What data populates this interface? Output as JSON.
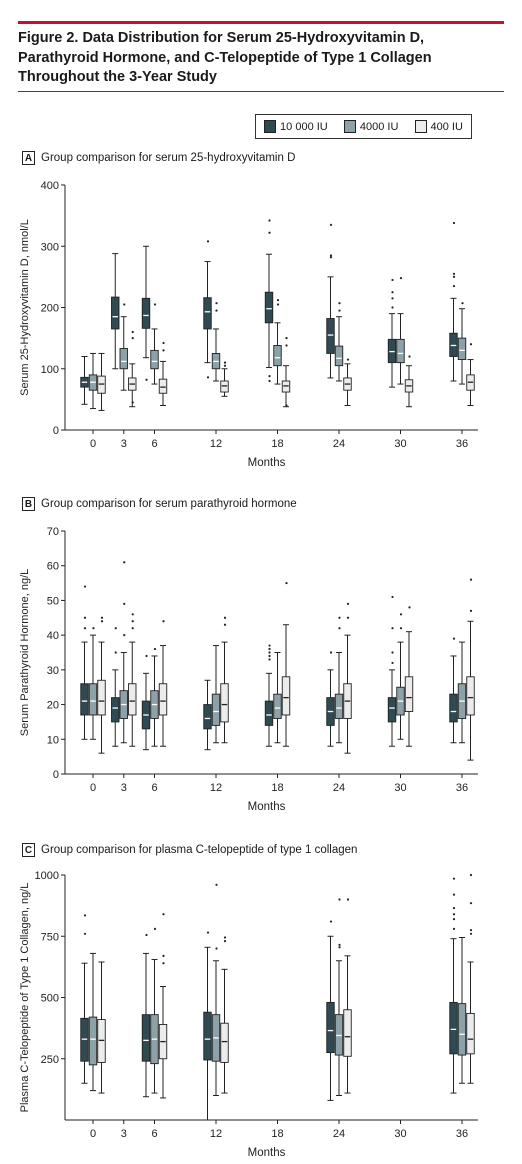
{
  "figure": {
    "title": "Figure 2. Data Distribution for Serum 25-Hydroxyvitamin D, Parathyroid Hormone, and C-Telopeptide of Type 1 Collagen Throughout the 3-Year Study"
  },
  "legend": [
    {
      "label": "10 000 IU",
      "color": "#2f4a52"
    },
    {
      "label": "4000 IU",
      "color": "#8da2a8"
    },
    {
      "label": "400 IU",
      "color": "#ececec"
    }
  ],
  "chart_data": [
    {
      "type": "box",
      "letter": "A",
      "title": "Group comparison for serum 25-hydroxyvitamin D",
      "xlabel": "Months",
      "ylabel": "Serum 25-Hydroxyvitamin D, nmol/L",
      "ylim": [
        0,
        400
      ],
      "yticks": [
        "0",
        "100",
        "200",
        "300",
        "400"
      ],
      "categories": [
        "0",
        "3",
        "6",
        "12",
        "18",
        "24",
        "30",
        "36"
      ],
      "series": [
        {
          "name": "10 000 IU",
          "boxes": [
            {
              "x": 0,
              "whislo": 42,
              "q1": 70,
              "med": 78,
              "q3": 86,
              "whishi": 120,
              "fliers": []
            },
            {
              "x": 3,
              "whislo": 100,
              "q1": 165,
              "med": 185,
              "q3": 217,
              "whishi": 288,
              "fliers": []
            },
            {
              "x": 6,
              "whislo": 118,
              "q1": 166,
              "med": 187,
              "q3": 215,
              "whishi": 300,
              "fliers": [
                82
              ]
            },
            {
              "x": 12,
              "whislo": 110,
              "q1": 165,
              "med": 193,
              "q3": 216,
              "whishi": 275,
              "fliers": [
                86,
                308
              ]
            },
            {
              "x": 18,
              "whislo": 102,
              "q1": 175,
              "med": 198,
              "q3": 225,
              "whishi": 287,
              "fliers": [
                80,
                88,
                322,
                342
              ]
            },
            {
              "x": 24,
              "whislo": 85,
              "q1": 125,
              "med": 155,
              "q3": 182,
              "whishi": 250,
              "fliers": [
                282,
                285,
                335
              ]
            },
            {
              "x": 30,
              "whislo": 70,
              "q1": 110,
              "med": 128,
              "q3": 148,
              "whishi": 190,
              "fliers": [
                200,
                215,
                225,
                245
              ]
            },
            {
              "x": 36,
              "whislo": 80,
              "q1": 120,
              "med": 138,
              "q3": 158,
              "whishi": 215,
              "fliers": [
                235,
                250,
                255,
                338
              ]
            }
          ]
        },
        {
          "name": "4000 IU",
          "boxes": [
            {
              "x": 0,
              "whislo": 35,
              "q1": 65,
              "med": 78,
              "q3": 90,
              "whishi": 125,
              "fliers": []
            },
            {
              "x": 3,
              "whislo": 65,
              "q1": 100,
              "med": 112,
              "q3": 133,
              "whishi": 185,
              "fliers": [
                205
              ]
            },
            {
              "x": 6,
              "whislo": 75,
              "q1": 100,
              "med": 112,
              "q3": 130,
              "whishi": 165,
              "fliers": [
                205
              ]
            },
            {
              "x": 12,
              "whislo": 80,
              "q1": 100,
              "med": 112,
              "q3": 125,
              "whishi": 165,
              "fliers": [
                195,
                207
              ]
            },
            {
              "x": 18,
              "whislo": 75,
              "q1": 105,
              "med": 118,
              "q3": 138,
              "whishi": 175,
              "fliers": [
                205,
                212
              ]
            },
            {
              "x": 24,
              "whislo": 80,
              "q1": 105,
              "med": 117,
              "q3": 137,
              "whishi": 185,
              "fliers": [
                195,
                207
              ]
            },
            {
              "x": 30,
              "whislo": 75,
              "q1": 110,
              "med": 125,
              "q3": 148,
              "whishi": 190,
              "fliers": [
                248
              ]
            },
            {
              "x": 36,
              "whislo": 75,
              "q1": 115,
              "med": 130,
              "q3": 150,
              "whishi": 198,
              "fliers": [
                207
              ]
            }
          ]
        },
        {
          "name": "400 IU",
          "boxes": [
            {
              "x": 0,
              "whislo": 32,
              "q1": 60,
              "med": 75,
              "q3": 88,
              "whishi": 125,
              "fliers": []
            },
            {
              "x": 3,
              "whislo": 38,
              "q1": 65,
              "med": 75,
              "q3": 85,
              "whishi": 108,
              "fliers": [
                45,
                150,
                160
              ]
            },
            {
              "x": 6,
              "whislo": 40,
              "q1": 60,
              "med": 70,
              "q3": 83,
              "whishi": 112,
              "fliers": [
                130,
                142
              ]
            },
            {
              "x": 12,
              "whislo": 55,
              "q1": 62,
              "med": 72,
              "q3": 80,
              "whishi": 100,
              "fliers": [
                105,
                110
              ]
            },
            {
              "x": 18,
              "whislo": 38,
              "q1": 62,
              "med": 72,
              "q3": 80,
              "whishi": 105,
              "fliers": [
                40,
                138,
                150
              ]
            },
            {
              "x": 24,
              "whislo": 40,
              "q1": 65,
              "med": 75,
              "q3": 85,
              "whishi": 108,
              "fliers": [
                115
              ]
            },
            {
              "x": 30,
              "whislo": 38,
              "q1": 62,
              "med": 72,
              "q3": 82,
              "whishi": 105,
              "fliers": [
                120
              ]
            },
            {
              "x": 36,
              "whislo": 40,
              "q1": 65,
              "med": 78,
              "q3": 90,
              "whishi": 115,
              "fliers": [
                140
              ]
            }
          ]
        }
      ]
    },
    {
      "type": "box",
      "letter": "B",
      "title": "Group comparison for serum parathyroid hormone",
      "xlabel": "Months",
      "ylabel": "Serum Parathyroid Hormone, ng/L",
      "ylim": [
        0,
        70
      ],
      "yticks": [
        "0",
        "10",
        "20",
        "30",
        "40",
        "50",
        "60",
        "70"
      ],
      "categories": [
        "0",
        "3",
        "6",
        "12",
        "18",
        "24",
        "30",
        "36"
      ],
      "series": [
        {
          "name": "10 000 IU",
          "boxes": [
            {
              "x": 0,
              "whislo": 10,
              "q1": 17,
              "med": 21,
              "q3": 26,
              "whishi": 38,
              "fliers": [
                42,
                45,
                54
              ]
            },
            {
              "x": 3,
              "whislo": 8,
              "q1": 15,
              "med": 19,
              "q3": 22,
              "whishi": 30,
              "fliers": [
                35,
                42
              ]
            },
            {
              "x": 6,
              "whislo": 7,
              "q1": 13,
              "med": 17,
              "q3": 21,
              "whishi": 29,
              "fliers": [
                34
              ]
            },
            {
              "x": 12,
              "whislo": 7,
              "q1": 13,
              "med": 16,
              "q3": 20,
              "whishi": 27,
              "fliers": []
            },
            {
              "x": 18,
              "whislo": 8,
              "q1": 14,
              "med": 17,
              "q3": 21,
              "whishi": 29,
              "fliers": [
                33,
                34,
                35,
                36,
                37
              ]
            },
            {
              "x": 24,
              "whislo": 8,
              "q1": 14,
              "med": 18,
              "q3": 22,
              "whishi": 30,
              "fliers": [
                35
              ]
            },
            {
              "x": 30,
              "whislo": 8,
              "q1": 15,
              "med": 19,
              "q3": 22,
              "whishi": 30,
              "fliers": [
                32,
                35,
                42,
                51
              ]
            },
            {
              "x": 36,
              "whislo": 9,
              "q1": 15,
              "med": 18,
              "q3": 23,
              "whishi": 34,
              "fliers": [
                39
              ]
            }
          ]
        },
        {
          "name": "4000 IU",
          "boxes": [
            {
              "x": 0,
              "whislo": 10,
              "q1": 17,
              "med": 21,
              "q3": 26,
              "whishi": 40,
              "fliers": [
                42
              ]
            },
            {
              "x": 3,
              "whislo": 9,
              "q1": 16,
              "med": 20,
              "q3": 24,
              "whishi": 35,
              "fliers": [
                40,
                49,
                61
              ]
            },
            {
              "x": 6,
              "whislo": 8,
              "q1": 16,
              "med": 20,
              "q3": 24,
              "whishi": 34,
              "fliers": [
                36
              ]
            },
            {
              "x": 12,
              "whislo": 9,
              "q1": 14,
              "med": 18,
              "q3": 23,
              "whishi": 37,
              "fliers": []
            },
            {
              "x": 18,
              "whislo": 9,
              "q1": 16,
              "med": 19,
              "q3": 23,
              "whishi": 35,
              "fliers": []
            },
            {
              "x": 24,
              "whislo": 9,
              "q1": 16,
              "med": 19,
              "q3": 23,
              "whishi": 35,
              "fliers": [
                42,
                45
              ]
            },
            {
              "x": 30,
              "whislo": 10,
              "q1": 17,
              "med": 21,
              "q3": 25,
              "whishi": 38,
              "fliers": [
                42,
                46
              ]
            },
            {
              "x": 36,
              "whislo": 9,
              "q1": 16,
              "med": 21,
              "q3": 26,
              "whishi": 38,
              "fliers": []
            }
          ]
        },
        {
          "name": "400 IU",
          "boxes": [
            {
              "x": 0,
              "whislo": 6,
              "q1": 17,
              "med": 21,
              "q3": 27,
              "whishi": 38,
              "fliers": [
                44,
                45
              ]
            },
            {
              "x": 3,
              "whislo": 8,
              "q1": 17,
              "med": 21,
              "q3": 26,
              "whishi": 38,
              "fliers": [
                42,
                44,
                46
              ]
            },
            {
              "x": 6,
              "whislo": 8,
              "q1": 17,
              "med": 21,
              "q3": 26,
              "whishi": 37,
              "fliers": [
                44
              ]
            },
            {
              "x": 12,
              "whislo": 9,
              "q1": 15,
              "med": 20,
              "q3": 26,
              "whishi": 38,
              "fliers": [
                43,
                45
              ]
            },
            {
              "x": 18,
              "whislo": 8,
              "q1": 17,
              "med": 22,
              "q3": 28,
              "whishi": 43,
              "fliers": [
                55
              ]
            },
            {
              "x": 24,
              "whislo": 6,
              "q1": 16,
              "med": 21,
              "q3": 26,
              "whishi": 40,
              "fliers": [
                45,
                49
              ]
            },
            {
              "x": 30,
              "whislo": 8,
              "q1": 18,
              "med": 22,
              "q3": 28,
              "whishi": 41,
              "fliers": [
                48
              ]
            },
            {
              "x": 36,
              "whislo": 4,
              "q1": 17,
              "med": 22,
              "q3": 28,
              "whishi": 44,
              "fliers": [
                47,
                56
              ]
            }
          ]
        }
      ]
    },
    {
      "type": "box",
      "letter": "C",
      "title": "Group comparison for plasma C-telopeptide of type 1 collagen",
      "xlabel": "Months",
      "ylabel": "Plasma C-Telopeptide of Type 1 Collagen, ng/L",
      "ylim": [
        0,
        1000
      ],
      "yticks": [
        "250",
        "500",
        "750",
        "1000"
      ],
      "categories": [
        "0",
        "3",
        "6",
        "12",
        "18",
        "24",
        "30",
        "36"
      ],
      "series": [
        {
          "name": "10 000 IU",
          "boxes": [
            {
              "x": 0,
              "whislo": 150,
              "q1": 240,
              "med": 330,
              "q3": 415,
              "whishi": 640,
              "fliers": [
                760,
                835
              ]
            },
            {
              "x": 6,
              "whislo": 95,
              "q1": 240,
              "med": 325,
              "q3": 430,
              "whishi": 680,
              "fliers": [
                755
              ]
            },
            {
              "x": 12,
              "whislo": 0,
              "q1": 245,
              "med": 330,
              "q3": 440,
              "whishi": 705,
              "fliers": [
                765
              ]
            },
            {
              "x": 24,
              "whislo": 80,
              "q1": 275,
              "med": 365,
              "q3": 480,
              "whishi": 750,
              "fliers": [
                810
              ]
            },
            {
              "x": 36,
              "whislo": 110,
              "q1": 270,
              "med": 370,
              "q3": 480,
              "whishi": 740,
              "fliers": [
                780,
                820,
                840,
                865,
                920,
                985
              ]
            }
          ]
        },
        {
          "name": "4000 IU",
          "boxes": [
            {
              "x": 0,
              "whislo": 120,
              "q1": 225,
              "med": 330,
              "q3": 420,
              "whishi": 680,
              "fliers": []
            },
            {
              "x": 6,
              "whislo": 110,
              "q1": 230,
              "med": 330,
              "q3": 430,
              "whishi": 655,
              "fliers": [
                780
              ]
            },
            {
              "x": 12,
              "whislo": 100,
              "q1": 240,
              "med": 335,
              "q3": 430,
              "whishi": 650,
              "fliers": [
                700,
                960
              ]
            },
            {
              "x": 24,
              "whislo": 100,
              "q1": 265,
              "med": 345,
              "q3": 430,
              "whishi": 650,
              "fliers": [
                705,
                715,
                900
              ]
            },
            {
              "x": 36,
              "whislo": 150,
              "q1": 265,
              "med": 350,
              "q3": 475,
              "whishi": 745,
              "fliers": []
            }
          ]
        },
        {
          "name": "400 IU",
          "boxes": [
            {
              "x": 0,
              "whislo": 110,
              "q1": 235,
              "med": 325,
              "q3": 410,
              "whishi": 645,
              "fliers": []
            },
            {
              "x": 6,
              "whislo": 90,
              "q1": 250,
              "med": 320,
              "q3": 390,
              "whishi": 545,
              "fliers": [
                640,
                670,
                840
              ]
            },
            {
              "x": 12,
              "whislo": 110,
              "q1": 235,
              "med": 320,
              "q3": 395,
              "whishi": 615,
              "fliers": [
                730,
                745
              ]
            },
            {
              "x": 24,
              "whislo": 110,
              "q1": 260,
              "med": 340,
              "q3": 450,
              "whishi": 670,
              "fliers": [
                900
              ]
            },
            {
              "x": 36,
              "whislo": 150,
              "q1": 270,
              "med": 330,
              "q3": 435,
              "whishi": 645,
              "fliers": [
                760,
                775,
                885,
                1000
              ]
            }
          ]
        }
      ]
    }
  ]
}
